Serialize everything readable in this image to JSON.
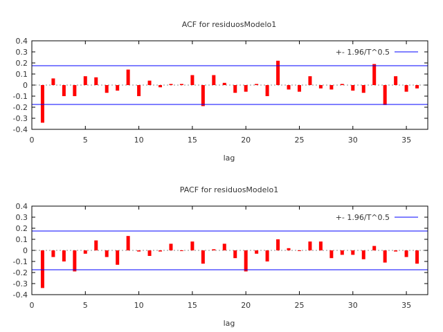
{
  "chart_data": [
    {
      "type": "bar",
      "title": "ACF for residuosModelo1",
      "xlabel": "lag",
      "ylabel": "",
      "xlim": [
        0,
        37
      ],
      "ylim": [
        -0.4,
        0.4
      ],
      "xticks": [
        0,
        5,
        10,
        15,
        20,
        25,
        30,
        35
      ],
      "yticks": [
        -0.4,
        -0.3,
        -0.2,
        -0.1,
        0,
        0.1,
        0.2,
        0.3,
        0.4
      ],
      "ytick_labels": [
        "-0.4",
        "-0.3",
        "-0.2",
        "-0.1",
        "0",
        "0.1",
        "0.2",
        "0.3",
        "0.4"
      ],
      "legend": {
        "label": "+- 1.96/T^0.5",
        "placement": "top-right"
      },
      "band": 0.175,
      "bar_color": "#ff0000",
      "band_color": "#0000ff",
      "x": [
        1,
        2,
        3,
        4,
        5,
        6,
        7,
        8,
        9,
        10,
        11,
        12,
        13,
        14,
        15,
        16,
        17,
        18,
        19,
        20,
        21,
        22,
        23,
        24,
        25,
        26,
        27,
        28,
        29,
        30,
        31,
        32,
        33,
        34,
        35,
        36
      ],
      "values": [
        -0.34,
        0.06,
        -0.1,
        -0.1,
        0.08,
        0.07,
        -0.07,
        -0.05,
        0.14,
        -0.1,
        0.04,
        -0.02,
        0.01,
        0.01,
        0.09,
        -0.19,
        0.09,
        0.02,
        -0.07,
        -0.06,
        0.01,
        -0.1,
        0.22,
        -0.04,
        -0.06,
        0.08,
        -0.03,
        -0.04,
        0.01,
        -0.05,
        -0.07,
        0.19,
        -0.18,
        0.08,
        -0.06,
        -0.03
      ]
    },
    {
      "type": "bar",
      "title": "PACF for residuosModelo1",
      "xlabel": "lag",
      "ylabel": "",
      "xlim": [
        0,
        37
      ],
      "ylim": [
        -0.4,
        0.4
      ],
      "xticks": [
        0,
        5,
        10,
        15,
        20,
        25,
        30,
        35
      ],
      "yticks": [
        -0.4,
        -0.3,
        -0.2,
        -0.1,
        0,
        0.1,
        0.2,
        0.3,
        0.4
      ],
      "ytick_labels": [
        "-0.4",
        "-0.3",
        "-0.2",
        "-0.1",
        "0",
        "0.1",
        "0.2",
        "0.3",
        "0.4"
      ],
      "legend": {
        "label": "+- 1.96/T^0.5",
        "placement": "top-right"
      },
      "band": 0.175,
      "bar_color": "#ff0000",
      "band_color": "#0000ff",
      "x": [
        1,
        2,
        3,
        4,
        5,
        6,
        7,
        8,
        9,
        10,
        11,
        12,
        13,
        14,
        15,
        16,
        17,
        18,
        19,
        20,
        21,
        22,
        23,
        24,
        25,
        26,
        27,
        28,
        29,
        30,
        31,
        32,
        33,
        34,
        35,
        36
      ],
      "values": [
        -0.34,
        -0.06,
        -0.1,
        -0.19,
        -0.03,
        0.09,
        -0.06,
        -0.13,
        0.13,
        -0.01,
        -0.05,
        -0.01,
        0.06,
        0.0,
        0.08,
        -0.12,
        0.01,
        0.06,
        -0.07,
        -0.19,
        -0.03,
        -0.1,
        0.1,
        0.02,
        0.0,
        0.08,
        0.08,
        -0.07,
        -0.04,
        -0.04,
        -0.08,
        0.04,
        -0.11,
        -0.01,
        -0.06,
        -0.12
      ]
    }
  ]
}
